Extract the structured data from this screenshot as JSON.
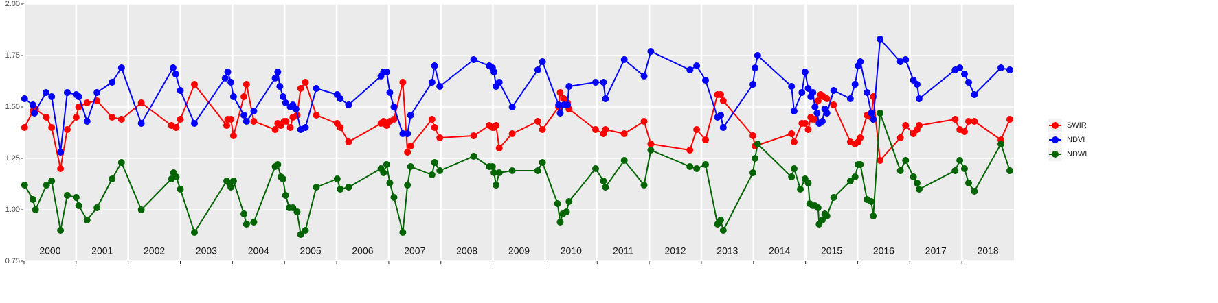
{
  "chart_data": {
    "type": "line",
    "markers": true,
    "grid": true,
    "legend": "right",
    "xlim": [
      2000,
      2019
    ],
    "xticks": [
      2000,
      2001,
      2002,
      2003,
      2004,
      2005,
      2006,
      2007,
      2008,
      2009,
      2010,
      2011,
      2012,
      2013,
      2014,
      2015,
      2016,
      2017,
      2018
    ],
    "ylim": [
      0.75,
      2.0
    ],
    "yticks": [
      {
        "value": 0.75,
        "label": "0.75"
      },
      {
        "value": 1.0,
        "label": "1.00"
      },
      {
        "value": 1.25,
        "label": "1.25"
      },
      {
        "value": 1.5,
        "label": "1.50"
      },
      {
        "value": 1.75,
        "label": "1.75"
      },
      {
        "value": 2.0,
        "label": "2.00"
      }
    ],
    "series": [
      {
        "name": "SWIR",
        "color": "#ff0000",
        "x": [
          2000.01,
          2000.17,
          2000.22,
          2000.43,
          2000.53,
          2000.7,
          2000.83,
          2001.0,
          2001.05,
          2001.21,
          2001.4,
          2001.69,
          2001.87,
          2002.25,
          2002.83,
          2002.92,
          2003.0,
          2003.27,
          2003.89,
          2003.91,
          2003.97,
          2004.02,
          2004.22,
          2004.27,
          2004.41,
          2004.82,
          2004.87,
          2004.93,
          2004.99,
          2005.03,
          2005.11,
          2005.16,
          2005.24,
          2005.31,
          2005.4,
          2005.61,
          2006.01,
          2006.07,
          2006.23,
          2006.85,
          2006.9,
          2006.96,
          2007.02,
          2007.1,
          2007.27,
          2007.36,
          2007.42,
          2007.83,
          2007.88,
          2007.98,
          2008.63,
          2008.93,
          2008.99,
          2009.02,
          2009.06,
          2009.12,
          2009.37,
          2009.86,
          2009.95,
          2010.26,
          2010.29,
          2010.36,
          2010.43,
          2010.46,
          2010.97,
          2011.12,
          2011.16,
          2011.52,
          2011.9,
          2012.03,
          2012.78,
          2012.91,
          2013.08,
          2013.31,
          2013.37,
          2013.42,
          2013.99,
          2014.03,
          2014.73,
          2014.78,
          2014.93,
          2014.99,
          2015.05,
          2015.1,
          2015.14,
          2015.18,
          2015.24,
          2015.29,
          2015.34,
          2015.41,
          2015.54,
          2015.86,
          2015.95,
          2016.01,
          2016.05,
          2016.18,
          2016.26,
          2016.3,
          2016.43,
          2016.82,
          2016.92,
          2017.07,
          2017.14,
          2017.18,
          2017.87,
          2017.96,
          2018.05,
          2018.13,
          2018.24,
          2018.75,
          2018.92
        ],
        "values": [
          1.4,
          1.48,
          1.49,
          1.45,
          1.4,
          1.2,
          1.39,
          1.45,
          1.5,
          1.52,
          1.53,
          1.45,
          1.44,
          1.52,
          1.41,
          1.4,
          1.44,
          1.61,
          1.41,
          1.44,
          1.44,
          1.36,
          1.55,
          1.61,
          1.43,
          1.39,
          1.42,
          1.41,
          1.43,
          1.43,
          1.4,
          1.45,
          1.46,
          1.59,
          1.62,
          1.46,
          1.42,
          1.4,
          1.33,
          1.42,
          1.43,
          1.41,
          1.43,
          1.44,
          1.62,
          1.28,
          1.31,
          1.44,
          1.4,
          1.35,
          1.36,
          1.41,
          1.4,
          1.4,
          1.41,
          1.3,
          1.37,
          1.43,
          1.39,
          1.5,
          1.57,
          1.54,
          1.52,
          1.49,
          1.39,
          1.37,
          1.39,
          1.37,
          1.43,
          1.32,
          1.29,
          1.39,
          1.34,
          1.56,
          1.56,
          1.53,
          1.36,
          1.31,
          1.37,
          1.33,
          1.42,
          1.42,
          1.39,
          1.45,
          1.44,
          1.44,
          1.53,
          1.56,
          1.55,
          1.54,
          1.51,
          1.33,
          1.32,
          1.33,
          1.35,
          1.46,
          1.45,
          1.55,
          1.24,
          1.35,
          1.41,
          1.37,
          1.39,
          1.41,
          1.44,
          1.39,
          1.38,
          1.43,
          1.43,
          1.34,
          1.44
        ]
      },
      {
        "name": "NDVI",
        "color": "#0000ff",
        "x": [
          2000.01,
          2000.17,
          2000.2,
          2000.42,
          2000.53,
          2000.7,
          2000.83,
          2001.0,
          2001.05,
          2001.21,
          2001.4,
          2001.69,
          2001.87,
          2002.25,
          2002.86,
          2002.91,
          2003.0,
          2003.27,
          2003.86,
          2003.91,
          2003.97,
          2004.02,
          2004.22,
          2004.27,
          2004.41,
          2004.82,
          2004.87,
          2004.91,
          2004.97,
          2005.02,
          2005.11,
          2005.16,
          2005.22,
          2005.31,
          2005.4,
          2005.61,
          2006.01,
          2006.07,
          2006.23,
          2006.85,
          2006.9,
          2006.96,
          2007.02,
          2007.1,
          2007.27,
          2007.36,
          2007.42,
          2007.83,
          2007.88,
          2007.98,
          2008.63,
          2008.93,
          2008.99,
          2009.02,
          2009.06,
          2009.12,
          2009.37,
          2009.86,
          2009.95,
          2010.26,
          2010.29,
          2010.36,
          2010.43,
          2010.46,
          2010.97,
          2011.12,
          2011.16,
          2011.52,
          2011.9,
          2012.03,
          2012.78,
          2012.91,
          2013.08,
          2013.31,
          2013.37,
          2013.42,
          2013.99,
          2014.03,
          2014.08,
          2014.73,
          2014.78,
          2014.93,
          2014.99,
          2015.05,
          2015.1,
          2015.14,
          2015.18,
          2015.22,
          2015.26,
          2015.32,
          2015.37,
          2015.41,
          2015.54,
          2015.86,
          2015.95,
          2016.01,
          2016.05,
          2016.18,
          2016.26,
          2016.3,
          2016.43,
          2016.82,
          2016.92,
          2017.07,
          2017.14,
          2017.18,
          2017.87,
          2017.96,
          2018.05,
          2018.13,
          2018.24,
          2018.75,
          2018.92
        ],
        "values": [
          1.54,
          1.51,
          1.47,
          1.57,
          1.55,
          1.28,
          1.57,
          1.56,
          1.55,
          1.43,
          1.57,
          1.62,
          1.69,
          1.42,
          1.69,
          1.66,
          1.58,
          1.42,
          1.64,
          1.67,
          1.62,
          1.55,
          1.46,
          1.43,
          1.48,
          1.64,
          1.67,
          1.6,
          1.55,
          1.52,
          1.5,
          1.51,
          1.49,
          1.39,
          1.4,
          1.59,
          1.56,
          1.54,
          1.51,
          1.65,
          1.67,
          1.67,
          1.57,
          1.5,
          1.37,
          1.37,
          1.46,
          1.62,
          1.7,
          1.6,
          1.73,
          1.7,
          1.69,
          1.67,
          1.6,
          1.62,
          1.5,
          1.68,
          1.72,
          1.51,
          1.47,
          1.51,
          1.51,
          1.6,
          1.62,
          1.62,
          1.54,
          1.73,
          1.65,
          1.77,
          1.68,
          1.7,
          1.63,
          1.45,
          1.46,
          1.4,
          1.61,
          1.69,
          1.75,
          1.6,
          1.48,
          1.57,
          1.67,
          1.59,
          1.55,
          1.57,
          1.5,
          1.47,
          1.42,
          1.43,
          1.49,
          1.47,
          1.58,
          1.54,
          1.61,
          1.7,
          1.72,
          1.57,
          1.47,
          1.44,
          1.83,
          1.72,
          1.73,
          1.63,
          1.61,
          1.54,
          1.68,
          1.69,
          1.66,
          1.62,
          1.56,
          1.69,
          1.68
        ]
      },
      {
        "name": "NDWI",
        "color": "#006400",
        "x": [
          2000.01,
          2000.17,
          2000.22,
          2000.43,
          2000.53,
          2000.7,
          2000.83,
          2001.0,
          2001.05,
          2001.21,
          2001.4,
          2001.69,
          2001.87,
          2002.25,
          2002.83,
          2002.87,
          2002.92,
          2003.0,
          2003.27,
          2003.89,
          2003.94,
          2003.97,
          2004.02,
          2004.22,
          2004.27,
          2004.41,
          2004.82,
          2004.87,
          2004.93,
          2004.97,
          2005.02,
          2005.09,
          2005.16,
          2005.24,
          2005.31,
          2005.4,
          2005.61,
          2006.01,
          2006.07,
          2006.23,
          2006.85,
          2006.9,
          2006.96,
          2007.02,
          2007.1,
          2007.27,
          2007.36,
          2007.42,
          2007.83,
          2007.88,
          2007.98,
          2008.63,
          2008.93,
          2008.99,
          2009.02,
          2009.06,
          2009.12,
          2009.37,
          2009.86,
          2009.95,
          2010.24,
          2010.29,
          2010.34,
          2010.41,
          2010.46,
          2010.97,
          2011.12,
          2011.16,
          2011.52,
          2011.9,
          2012.03,
          2012.78,
          2012.91,
          2013.08,
          2013.31,
          2013.37,
          2013.42,
          2013.99,
          2014.03,
          2014.08,
          2014.73,
          2014.78,
          2014.9,
          2014.99,
          2015.05,
          2015.08,
          2015.14,
          2015.18,
          2015.24,
          2015.26,
          2015.32,
          2015.37,
          2015.41,
          2015.54,
          2015.86,
          2015.95,
          2016.01,
          2016.05,
          2016.18,
          2016.26,
          2016.3,
          2016.43,
          2016.82,
          2016.92,
          2017.07,
          2017.14,
          2017.18,
          2017.87,
          2017.96,
          2018.05,
          2018.13,
          2018.24,
          2018.75,
          2018.92
        ],
        "values": [
          1.12,
          1.05,
          1.0,
          1.12,
          1.14,
          0.9,
          1.07,
          1.06,
          1.02,
          0.95,
          1.01,
          1.15,
          1.23,
          1.0,
          1.15,
          1.18,
          1.16,
          1.1,
          0.89,
          1.14,
          1.13,
          1.11,
          1.14,
          0.98,
          0.93,
          0.94,
          1.21,
          1.22,
          1.16,
          1.15,
          1.07,
          1.01,
          1.01,
          0.99,
          0.88,
          0.9,
          1.11,
          1.15,
          1.1,
          1.11,
          1.2,
          1.18,
          1.22,
          1.13,
          1.06,
          0.89,
          1.12,
          1.21,
          1.17,
          1.23,
          1.19,
          1.26,
          1.21,
          1.21,
          1.18,
          1.12,
          1.18,
          1.19,
          1.19,
          1.23,
          1.03,
          0.94,
          0.98,
          0.99,
          1.04,
          1.2,
          1.14,
          1.11,
          1.24,
          1.12,
          1.29,
          1.21,
          1.2,
          1.22,
          0.93,
          0.95,
          0.9,
          1.18,
          1.25,
          1.32,
          1.16,
          1.2,
          1.1,
          1.15,
          1.13,
          1.03,
          1.02,
          1.02,
          1.01,
          0.93,
          0.95,
          0.98,
          0.97,
          1.06,
          1.14,
          1.16,
          1.22,
          1.22,
          1.05,
          1.04,
          0.97,
          1.47,
          1.19,
          1.24,
          1.16,
          1.13,
          1.1,
          1.19,
          1.24,
          1.2,
          1.13,
          1.09,
          1.32,
          1.19
        ]
      }
    ]
  }
}
